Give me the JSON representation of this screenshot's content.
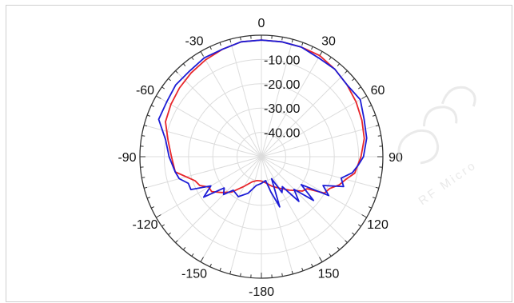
{
  "chart_data": {
    "type": "polar-line",
    "title": "",
    "angle_unit": "degrees",
    "angle_zero": "top",
    "angle_direction": "clockwise",
    "angle_ticks": [
      0,
      30,
      60,
      90,
      120,
      150,
      -180,
      -150,
      -120,
      -90,
      -60,
      -30
    ],
    "radial_range": [
      -50,
      0
    ],
    "radial_ticks": [
      -10,
      -20,
      -30,
      -40
    ],
    "radial_tick_labels": [
      "-10.00",
      "-20.00",
      "-30.00",
      "-40.00"
    ],
    "grid": true,
    "series": [
      {
        "color": "#e8262b",
        "points": [
          [
            -180,
            -40
          ],
          [
            -170,
            -40
          ],
          [
            -160,
            -39
          ],
          [
            -150,
            -36
          ],
          [
            -140,
            -31
          ],
          [
            -132,
            -28
          ],
          [
            -125,
            -25
          ],
          [
            -120,
            -25
          ],
          [
            -115,
            -22
          ],
          [
            -110,
            -21
          ],
          [
            -100,
            -14
          ],
          [
            -90,
            -13
          ],
          [
            -80,
            -11
          ],
          [
            -70,
            -8
          ],
          [
            -60,
            -7
          ],
          [
            -50,
            -6
          ],
          [
            -40,
            -5
          ],
          [
            -30,
            -4
          ],
          [
            -20,
            -3
          ],
          [
            -10,
            -2
          ],
          [
            0,
            -2
          ],
          [
            10,
            -2
          ],
          [
            20,
            -2
          ],
          [
            30,
            -2
          ],
          [
            40,
            -3
          ],
          [
            50,
            -4
          ],
          [
            60,
            -5
          ],
          [
            70,
            -6
          ],
          [
            80,
            -7
          ],
          [
            90,
            -9
          ],
          [
            100,
            -11
          ],
          [
            105,
            -14
          ],
          [
            110,
            -16
          ],
          [
            115,
            -19
          ],
          [
            120,
            -20
          ],
          [
            125,
            -27
          ],
          [
            130,
            -28
          ],
          [
            140,
            -32
          ],
          [
            150,
            -35
          ],
          [
            160,
            -37
          ],
          [
            170,
            -39
          ],
          [
            180,
            -40
          ]
        ]
      },
      {
        "color": "#1c1cd6",
        "points": [
          [
            -180,
            -39
          ],
          [
            -170,
            -38
          ],
          [
            -160,
            -34
          ],
          [
            -150,
            -31
          ],
          [
            -140,
            -32
          ],
          [
            -135,
            -28
          ],
          [
            -130,
            -30
          ],
          [
            -125,
            -21
          ],
          [
            -120,
            -26
          ],
          [
            -115,
            -18
          ],
          [
            -110,
            -18
          ],
          [
            -105,
            -15
          ],
          [
            -100,
            -14
          ],
          [
            -90,
            -12
          ],
          [
            -80,
            -10
          ],
          [
            -70,
            -5
          ],
          [
            -60,
            -5
          ],
          [
            -50,
            -4
          ],
          [
            -40,
            -4
          ],
          [
            -30,
            -3
          ],
          [
            -20,
            -3
          ],
          [
            -10,
            -2
          ],
          [
            0,
            -2
          ],
          [
            10,
            -2
          ],
          [
            20,
            -2
          ],
          [
            30,
            -3
          ],
          [
            40,
            -3
          ],
          [
            50,
            -4
          ],
          [
            60,
            -3
          ],
          [
            70,
            -5
          ],
          [
            80,
            -6
          ],
          [
            90,
            -8
          ],
          [
            95,
            -10
          ],
          [
            100,
            -12
          ],
          [
            105,
            -16
          ],
          [
            110,
            -14
          ],
          [
            115,
            -22
          ],
          [
            120,
            -18
          ],
          [
            125,
            -30
          ],
          [
            130,
            -22
          ],
          [
            135,
            -31
          ],
          [
            140,
            -26
          ],
          [
            145,
            -35
          ],
          [
            150,
            -33
          ],
          [
            155,
            -40
          ],
          [
            160,
            -28
          ],
          [
            165,
            -35
          ],
          [
            170,
            -40
          ],
          [
            180,
            -39
          ]
        ]
      }
    ]
  },
  "watermark": {
    "text": "RF Micro",
    "color": "#e3e3e3"
  }
}
